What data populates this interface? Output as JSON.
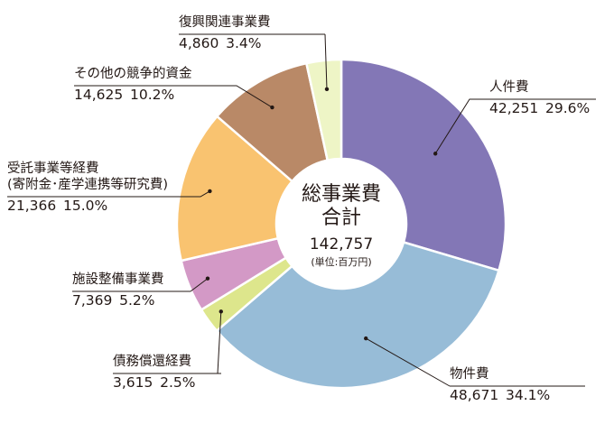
{
  "chart_data": {
    "type": "pie",
    "style": "donut",
    "center_title_lines": [
      "総事業費",
      "合計"
    ],
    "center_total": "142,757",
    "center_unit": "(単位:百万円)",
    "slices": [
      {
        "label": "人件費",
        "value": 42251,
        "value_text": "42,251",
        "percent_text": "29.6%",
        "color": "#8377b6"
      },
      {
        "label": "物件費",
        "value": 48671,
        "value_text": "48,671",
        "percent_text": "34.1%",
        "color": "#97bcd7"
      },
      {
        "label": "債務償還経費",
        "value": 3615,
        "value_text": "3,615",
        "percent_text": "2.5%",
        "color": "#dde68c"
      },
      {
        "label": "施設整備事業費",
        "value": 7369,
        "value_text": "7,369",
        "percent_text": "5.2%",
        "color": "#d399c6"
      },
      {
        "label": "受託事業等経費\n(寄附金･産学連携等研究費)",
        "value": 21366,
        "value_text": "21,366",
        "percent_text": "15.0%",
        "color": "#f9c370"
      },
      {
        "label": "その他の競争的資金",
        "value": 14625,
        "value_text": "14,625",
        "percent_text": "10.2%",
        "color": "#b98967"
      },
      {
        "label": "復興関連事業費",
        "value": 4860,
        "value_text": "4,860",
        "percent_text": "3.4%",
        "color": "#eef5c6"
      }
    ]
  }
}
